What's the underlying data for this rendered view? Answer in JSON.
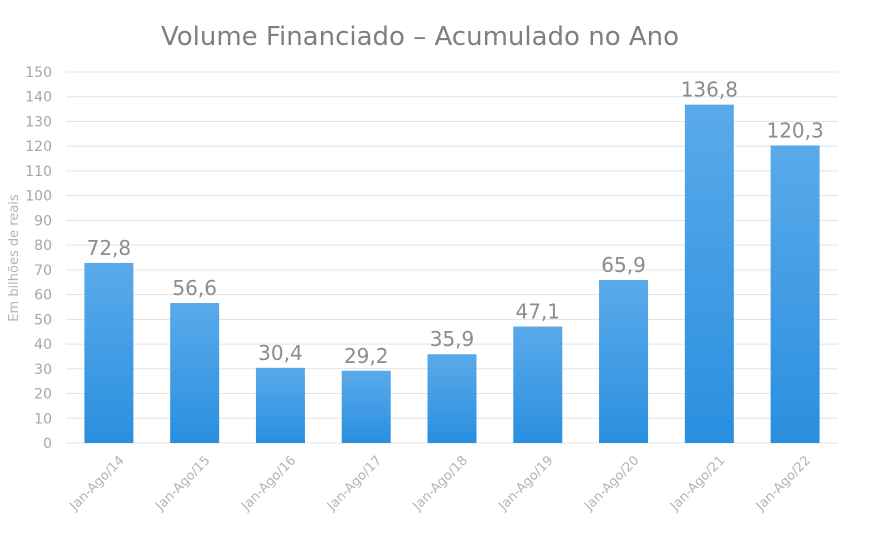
{
  "chart_data": {
    "type": "bar",
    "title": "Volume Financiado – Acumulado no Ano",
    "xlabel": "",
    "ylabel": "Em bilhões de reais",
    "categories": [
      "Jan-Ago/14",
      "Jan-Ago/15",
      "Jan-Ago/16",
      "Jan-Ago/17",
      "Jan-Ago/18",
      "Jan-Ago/19",
      "Jan-Ago/20",
      "Jan-Ago/21",
      "Jan-Ago/22"
    ],
    "values": [
      72.8,
      56.6,
      30.4,
      29.2,
      35.9,
      47.1,
      65.9,
      136.8,
      120.3
    ],
    "data_labels": [
      "72,8",
      "56,6",
      "30,4",
      "29,2",
      "35,9",
      "47,1",
      "65,9",
      "136,8",
      "120,3"
    ],
    "ylim": [
      0,
      150
    ],
    "yticks": [
      0,
      10,
      20,
      30,
      40,
      50,
      60,
      70,
      80,
      90,
      100,
      110,
      120,
      130,
      140,
      150
    ],
    "grid": true,
    "legend": "none",
    "colors": {
      "bar_top": "#5aaaea",
      "bar_bottom": "#2a8fdf",
      "grid": "#e3e3e3"
    }
  }
}
